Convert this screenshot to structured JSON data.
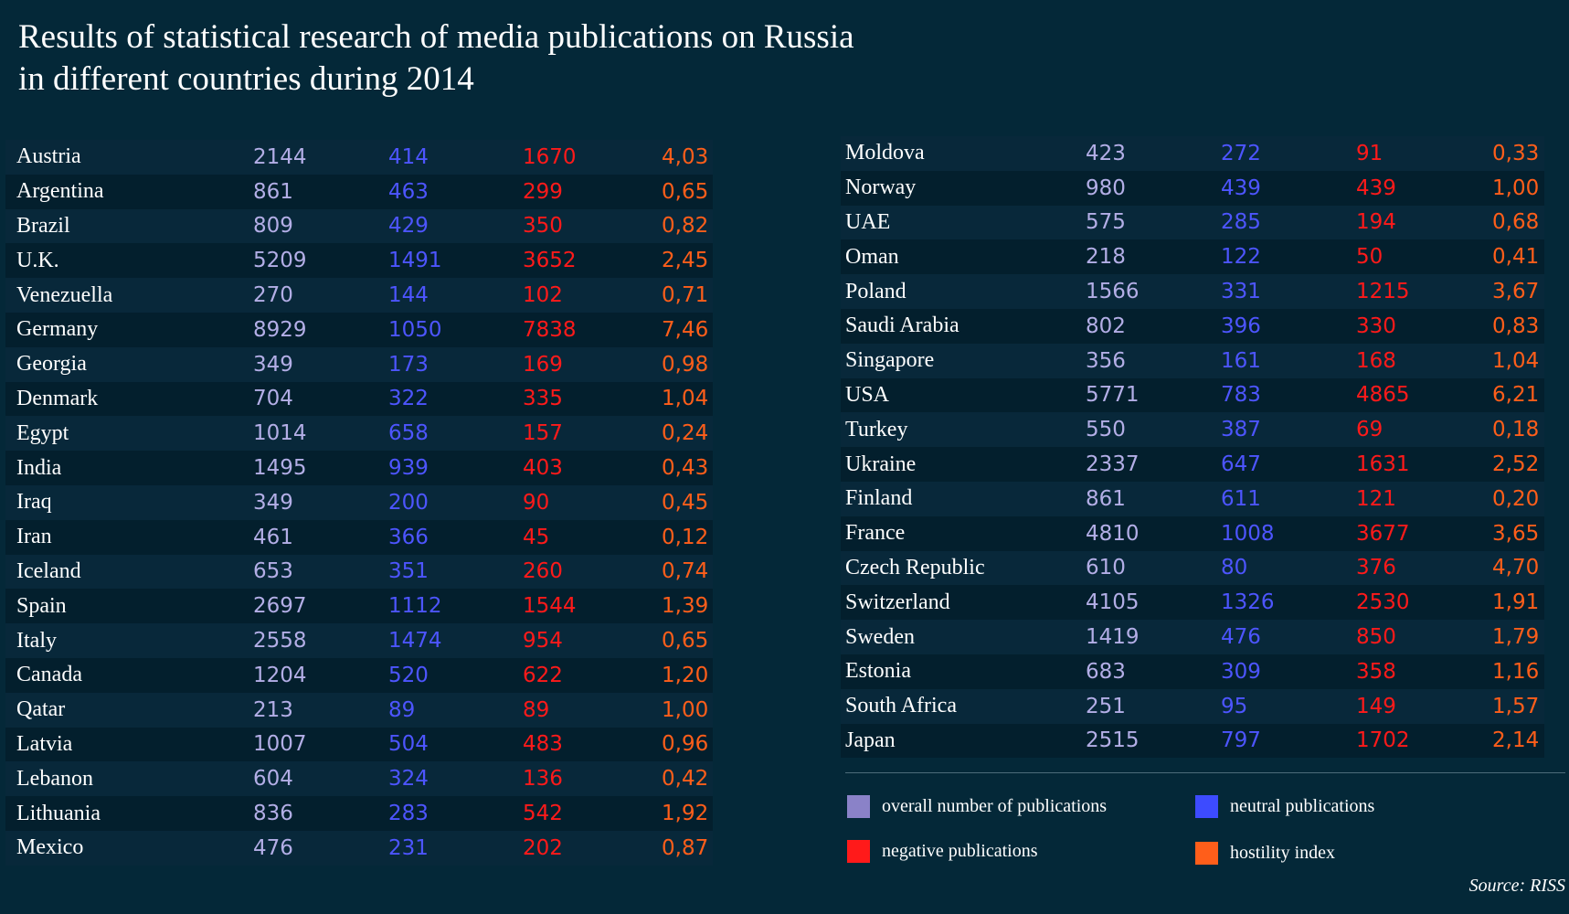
{
  "title_line1": "Results of statistical research of media publications on Russia",
  "title_line2": "in different countries during 2014",
  "source": "Source: RISS",
  "colors": {
    "overall": "#8a82c8",
    "neutral": "#3d4bff",
    "negative": "#ff1a1a",
    "hostility": "#ff5e1a"
  },
  "legend": [
    {
      "key": "overall",
      "label": "overall number of publications"
    },
    {
      "key": "neutral",
      "label": "neutral publications"
    },
    {
      "key": "negative",
      "label": "negative publications"
    },
    {
      "key": "hostility",
      "label": "hostility index"
    }
  ],
  "chart_data": {
    "type": "table",
    "columns": [
      "overall number of publications",
      "neutral publications",
      "negative publications",
      "hostility index"
    ],
    "left": [
      {
        "country": "Austria",
        "total": "2144",
        "neutral": "414",
        "negative": "1670",
        "index": "4,03"
      },
      {
        "country": "Argentina",
        "total": "861",
        "neutral": "463",
        "negative": "299",
        "index": "0,65"
      },
      {
        "country": "Brazil",
        "total": "809",
        "neutral": "429",
        "negative": "350",
        "index": "0,82"
      },
      {
        "country": "U.K.",
        "total": "5209",
        "neutral": "1491",
        "negative": "3652",
        "index": "2,45"
      },
      {
        "country": "Venezuella",
        "total": "270",
        "neutral": "144",
        "negative": "102",
        "index": "0,71"
      },
      {
        "country": "Germany",
        "total": "8929",
        "neutral": "1050",
        "negative": "7838",
        "index": "7,46"
      },
      {
        "country": "Georgia",
        "total": "349",
        "neutral": "173",
        "negative": "169",
        "index": "0,98"
      },
      {
        "country": "Denmark",
        "total": "704",
        "neutral": "322",
        "negative": "335",
        "index": "1,04"
      },
      {
        "country": "Egypt",
        "total": "1014",
        "neutral": "658",
        "negative": "157",
        "index": "0,24"
      },
      {
        "country": "India",
        "total": "1495",
        "neutral": "939",
        "negative": "403",
        "index": "0,43"
      },
      {
        "country": "Iraq",
        "total": "349",
        "neutral": "200",
        "negative": "90",
        "index": "0,45"
      },
      {
        "country": "Iran",
        "total": "461",
        "neutral": "366",
        "negative": "45",
        "index": "0,12"
      },
      {
        "country": "Iceland",
        "total": "653",
        "neutral": "351",
        "negative": "260",
        "index": "0,74"
      },
      {
        "country": "Spain",
        "total": "2697",
        "neutral": "1112",
        "negative": "1544",
        "index": "1,39"
      },
      {
        "country": "Italy",
        "total": "2558",
        "neutral": "1474",
        "negative": "954",
        "index": "0,65"
      },
      {
        "country": "Canada",
        "total": "1204",
        "neutral": "520",
        "negative": "622",
        "index": "1,20"
      },
      {
        "country": "Qatar",
        "total": "213",
        "neutral": "89",
        "negative": "89",
        "index": "1,00"
      },
      {
        "country": "Latvia",
        "total": "1007",
        "neutral": "504",
        "negative": "483",
        "index": "0,96"
      },
      {
        "country": "Lebanon",
        "total": "604",
        "neutral": "324",
        "negative": "136",
        "index": "0,42"
      },
      {
        "country": "Lithuania",
        "total": "836",
        "neutral": "283",
        "negative": "542",
        "index": "1,92"
      },
      {
        "country": "Mexico",
        "total": "476",
        "neutral": "231",
        "negative": "202",
        "index": "0,87"
      }
    ],
    "right": [
      {
        "country": "Moldova",
        "total": "423",
        "neutral": "272",
        "negative": "91",
        "index": "0,33"
      },
      {
        "country": "Norway",
        "total": "980",
        "neutral": "439",
        "negative": "439",
        "index": "1,00"
      },
      {
        "country": "UAE",
        "total": "575",
        "neutral": "285",
        "negative": "194",
        "index": "0,68"
      },
      {
        "country": "Oman",
        "total": "218",
        "neutral": "122",
        "negative": "50",
        "index": "0,41"
      },
      {
        "country": "Poland",
        "total": "1566",
        "neutral": "331",
        "negative": "1215",
        "index": "3,67"
      },
      {
        "country": "Saudi Arabia",
        "total": "802",
        "neutral": "396",
        "negative": "330",
        "index": "0,83"
      },
      {
        "country": "Singapore",
        "total": "356",
        "neutral": "161",
        "negative": "168",
        "index": "1,04"
      },
      {
        "country": "USA",
        "total": "5771",
        "neutral": "783",
        "negative": "4865",
        "index": "6,21"
      },
      {
        "country": "Turkey",
        "total": "550",
        "neutral": "387",
        "negative": "69",
        "index": "0,18"
      },
      {
        "country": "Ukraine",
        "total": "2337",
        "neutral": "647",
        "negative": "1631",
        "index": "2,52"
      },
      {
        "country": "Finland",
        "total": "861",
        "neutral": "611",
        "negative": "121",
        "index": "0,20"
      },
      {
        "country": "France",
        "total": "4810",
        "neutral": "1008",
        "negative": "3677",
        "index": "3,65"
      },
      {
        "country": "Czech Republic",
        "total": "610",
        "neutral": "80",
        "negative": "376",
        "index": "4,70"
      },
      {
        "country": "Switzerland",
        "total": "4105",
        "neutral": "1326",
        "negative": "2530",
        "index": "1,91"
      },
      {
        "country": "Sweden",
        "total": "1419",
        "neutral": "476",
        "negative": "850",
        "index": "1,79"
      },
      {
        "country": "Estonia",
        "total": "683",
        "neutral": "309",
        "negative": "358",
        "index": "1,16"
      },
      {
        "country": "South Africa",
        "total": "251",
        "neutral": "95",
        "negative": "149",
        "index": "1,57"
      },
      {
        "country": "Japan",
        "total": "2515",
        "neutral": "797",
        "negative": "1702",
        "index": "2,14"
      }
    ]
  }
}
